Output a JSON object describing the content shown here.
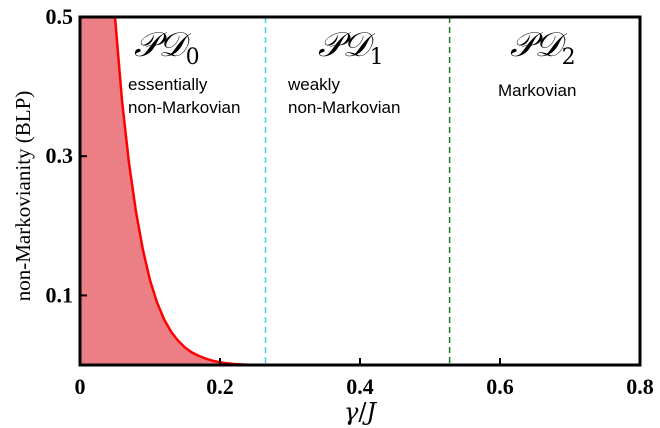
{
  "chart_data": {
    "type": "area",
    "xlabel_var": "γ",
    "xlabel_sep": "/",
    "xlabel_unit": "J",
    "ylabel": "non-Markovianity (BLP)",
    "xlim": [
      0,
      0.8
    ],
    "ylim": [
      0,
      0.5
    ],
    "x_ticks": [
      0,
      0.2,
      0.4,
      0.6,
      0.8
    ],
    "x_tick_labels": [
      "0",
      "0.2",
      "0.4",
      "0.6",
      "0.8"
    ],
    "y_ticks": [
      0.1,
      0.3,
      0.5
    ],
    "y_tick_labels": [
      "0.1",
      "0.3",
      "0.5"
    ],
    "series": [
      {
        "color": "#ff0000",
        "fill_color": "#ec7f86",
        "x": [
          0.05,
          0.06,
          0.07,
          0.08,
          0.09,
          0.1,
          0.11,
          0.12,
          0.13,
          0.14,
          0.15,
          0.16,
          0.17,
          0.18,
          0.19,
          0.2,
          0.21,
          0.22,
          0.23,
          0.24,
          0.25,
          0.26
        ],
        "y": [
          0.5,
          0.38,
          0.29,
          0.22,
          0.165,
          0.122,
          0.09,
          0.066,
          0.048,
          0.035,
          0.025,
          0.018,
          0.013,
          0.009,
          0.006,
          0.004,
          0.0025,
          0.0015,
          0.0008,
          0.0004,
          0.0001,
          0.0
        ]
      }
    ],
    "vlines": [
      {
        "x": 0.265,
        "color": "#3fd3e6"
      },
      {
        "x": 0.528,
        "color": "#1f7a2a"
      }
    ],
    "regions": [
      {
        "title": "𝒫𝒟",
        "subscript": "0",
        "desc_line1": "essentially",
        "desc_line2": "non-Markovian"
      },
      {
        "title": "𝒫𝒟",
        "subscript": "1",
        "desc_line1": "weakly",
        "desc_line2": "non-Markovian"
      },
      {
        "title": "𝒫𝒟",
        "subscript": "2",
        "desc_line1": "Markovian",
        "desc_line2": ""
      }
    ]
  }
}
